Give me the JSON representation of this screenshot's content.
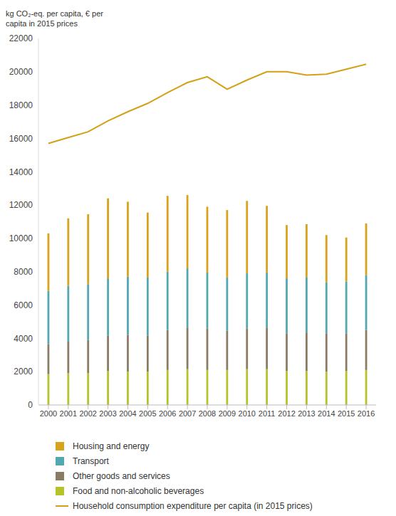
{
  "chart_data": {
    "type": "bar",
    "title": "kg CO₂-eq. per capita, € per capita in 2015 prices",
    "stacked": true,
    "grid": false,
    "categories": [
      "2000",
      "2001",
      "2002",
      "2003",
      "2004",
      "2005",
      "2006",
      "2007",
      "2008",
      "2009",
      "2010",
      "2011",
      "2012",
      "2013",
      "2014",
      "2015",
      "2016"
    ],
    "ylim": [
      0,
      22000
    ],
    "yticks": [
      0,
      2000,
      4000,
      6000,
      8000,
      10000,
      12000,
      14000,
      16000,
      18000,
      20000,
      22000
    ],
    "legend": "bottom",
    "series": [
      {
        "name": "Housing and energy",
        "type": "bar",
        "color": "#d9a21b",
        "values": [
          3450,
          4050,
          4200,
          4800,
          4500,
          3900,
          4550,
          4400,
          3950,
          4050,
          4350,
          4000,
          3200,
          3200,
          2850,
          2650,
          3100
        ]
      },
      {
        "name": "Transport",
        "type": "bar",
        "color": "#52a7b0",
        "values": [
          3200,
          3350,
          3350,
          3450,
          3500,
          3500,
          3500,
          3550,
          3350,
          3200,
          3300,
          3300,
          3300,
          3300,
          3050,
          3100,
          3300
        ]
      },
      {
        "name": "Other goods and services",
        "type": "bar",
        "color": "#8b7b63",
        "values": [
          1800,
          1900,
          2000,
          2100,
          2200,
          2150,
          2400,
          2500,
          2500,
          2350,
          2450,
          2500,
          2250,
          2300,
          2300,
          2250,
          2400
        ]
      },
      {
        "name": "Food and non-alcoholic beverages",
        "type": "bar",
        "color": "#b5c22a",
        "values": [
          1850,
          1900,
          1900,
          2050,
          2000,
          2000,
          2100,
          2150,
          2100,
          2100,
          2150,
          2150,
          2050,
          2050,
          2000,
          2050,
          2100
        ]
      },
      {
        "name": "Household consumption expenditure per capita (in 2015 prices)",
        "type": "line",
        "color": "#d4a017",
        "values": [
          15700,
          16050,
          16400,
          17050,
          17600,
          18100,
          18750,
          19350,
          19700,
          18950,
          19500,
          20000,
          20000,
          19800,
          19850,
          20150,
          20450
        ]
      }
    ]
  }
}
